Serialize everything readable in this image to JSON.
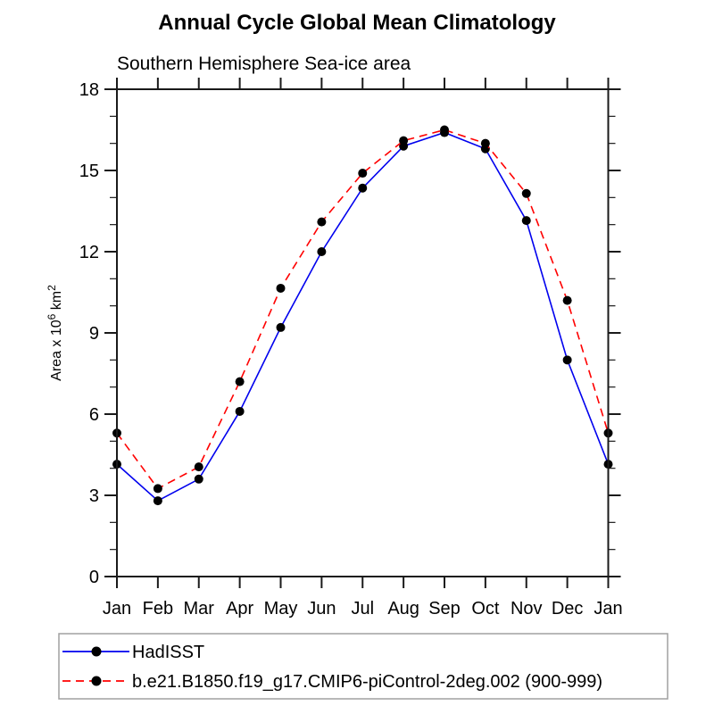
{
  "chart_data": {
    "type": "line",
    "title": "Annual Cycle Global Mean Climatology",
    "subtitle": "Southern Hemisphere Sea-ice area",
    "ylabel_parts": [
      {
        "t": "Area x 10"
      },
      {
        "t": "6",
        "sup": true
      },
      {
        "t": " km"
      },
      {
        "t": "2",
        "sup": true
      }
    ],
    "categories": [
      "Jan",
      "Feb",
      "Mar",
      "Apr",
      "May",
      "Jun",
      "Jul",
      "Aug",
      "Sep",
      "Oct",
      "Nov",
      "Dec",
      "Jan"
    ],
    "ylim": [
      0,
      18
    ],
    "yticks_major": [
      0,
      3,
      6,
      9,
      12,
      15,
      18
    ],
    "yminor_step": 1,
    "grid": false,
    "legend_position": "bottom-left",
    "series": [
      {
        "name": "HadISST",
        "color": "#0000ee",
        "dash": "solid",
        "marker_color": "#000000",
        "values": [
          4.15,
          2.8,
          3.6,
          6.1,
          9.2,
          12.0,
          14.35,
          15.9,
          16.4,
          15.8,
          13.15,
          8.0,
          4.15
        ]
      },
      {
        "name": "b.e21.B1850.f19_g17.CMIP6-piControl-2deg.002 (900-999)",
        "color": "#ff0000",
        "dash": "dashed",
        "marker_color": "#000000",
        "values": [
          5.3,
          3.25,
          4.05,
          7.2,
          10.65,
          13.1,
          14.9,
          16.1,
          16.5,
          16.0,
          14.15,
          10.2,
          5.3
        ]
      }
    ],
    "axis_color": "#1a1a1a",
    "legend_border_color": "#a0a0a0"
  }
}
